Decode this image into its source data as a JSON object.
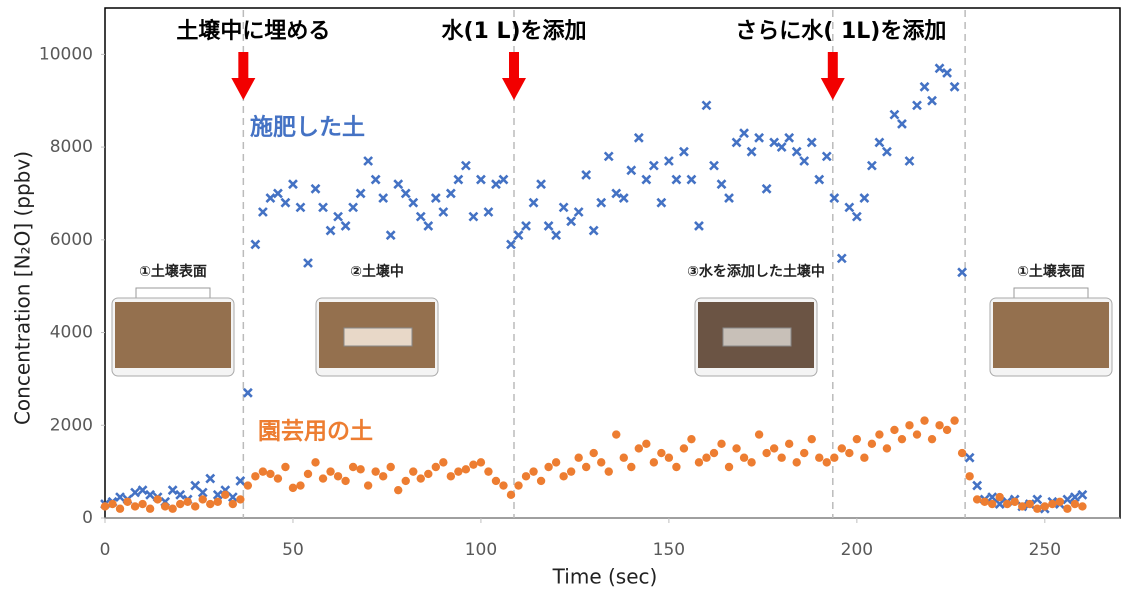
{
  "chart_data": {
    "type": "scatter",
    "xlabel": "Time (sec)",
    "ylabel": "Concentration [N₂O] (ppbv)",
    "xlim": [
      0,
      270
    ],
    "ylim": [
      0,
      11000
    ],
    "xticks": [
      0,
      50,
      100,
      150,
      200,
      250
    ],
    "yticks": [
      0,
      2000,
      4000,
      6000,
      8000,
      10000
    ],
    "x": [
      0,
      2,
      4,
      6,
      8,
      10,
      12,
      14,
      16,
      18,
      20,
      22,
      24,
      26,
      28,
      30,
      32,
      34,
      36,
      38,
      40,
      42,
      44,
      46,
      48,
      50,
      52,
      54,
      56,
      58,
      60,
      62,
      64,
      66,
      68,
      70,
      72,
      74,
      76,
      78,
      80,
      82,
      84,
      86,
      88,
      90,
      92,
      94,
      96,
      98,
      100,
      102,
      104,
      106,
      108,
      110,
      112,
      114,
      116,
      118,
      120,
      122,
      124,
      126,
      128,
      130,
      132,
      134,
      136,
      138,
      140,
      142,
      144,
      146,
      148,
      150,
      152,
      154,
      156,
      158,
      160,
      162,
      164,
      166,
      168,
      170,
      172,
      174,
      176,
      178,
      180,
      182,
      184,
      186,
      188,
      190,
      192,
      194,
      196,
      198,
      200,
      202,
      204,
      206,
      208,
      210,
      212,
      214,
      216,
      218,
      220,
      222,
      224,
      226,
      228,
      230,
      232,
      234,
      236,
      238,
      240,
      242,
      244,
      246,
      248,
      250,
      252,
      254,
      256,
      258,
      260
    ],
    "series": [
      {
        "name": "施肥した土",
        "color": "#4472c4",
        "marker": "x",
        "values": [
          300,
          350,
          450,
          400,
          550,
          600,
          500,
          450,
          350,
          600,
          500,
          400,
          700,
          550,
          850,
          500,
          600,
          450,
          800,
          2700,
          5900,
          6600,
          6900,
          7000,
          6800,
          7200,
          6700,
          5500,
          7100,
          6700,
          6200,
          6500,
          6300,
          6700,
          7000,
          7700,
          7300,
          6900,
          6100,
          7200,
          7000,
          6800,
          6500,
          6300,
          6900,
          6600,
          7000,
          7300,
          7600,
          6500,
          7300,
          6600,
          7200,
          7300,
          5900,
          6100,
          6300,
          6800,
          7200,
          6300,
          6100,
          6700,
          6400,
          6600,
          7400,
          6200,
          6800,
          7800,
          7000,
          6900,
          7500,
          8200,
          7300,
          7600,
          6800,
          7700,
          7300,
          7900,
          7300,
          6300,
          8900,
          7600,
          7200,
          6900,
          8100,
          8300,
          7900,
          8200,
          7100,
          8100,
          8000,
          8200,
          7900,
          7700,
          8100,
          7300,
          7800,
          6900,
          5600,
          6700,
          6500,
          6900,
          7600,
          8100,
          7900,
          8700,
          8500,
          7700,
          8900,
          9300,
          9000,
          9700,
          9600,
          9300,
          5300,
          1300,
          700,
          400,
          450,
          300,
          350,
          400,
          250,
          300,
          400,
          200,
          350,
          300,
          400,
          450,
          500
        ]
      },
      {
        "name": "園芸用の土",
        "color": "#ed7d31",
        "marker": "o",
        "values": [
          250,
          300,
          200,
          350,
          250,
          300,
          200,
          400,
          250,
          200,
          300,
          350,
          250,
          400,
          300,
          350,
          500,
          300,
          400,
          700,
          900,
          1000,
          950,
          850,
          1100,
          650,
          700,
          950,
          1200,
          850,
          1000,
          900,
          800,
          1100,
          1050,
          700,
          1000,
          900,
          1100,
          600,
          800,
          1000,
          850,
          950,
          1100,
          1200,
          900,
          1000,
          1050,
          1150,
          1200,
          1000,
          800,
          700,
          500,
          700,
          900,
          1000,
          800,
          1100,
          1200,
          900,
          1000,
          1300,
          1100,
          1400,
          1200,
          1000,
          1800,
          1300,
          1100,
          1500,
          1600,
          1200,
          1400,
          1300,
          1100,
          1500,
          1700,
          1200,
          1300,
          1400,
          1600,
          1100,
          1500,
          1300,
          1200,
          1800,
          1400,
          1500,
          1300,
          1600,
          1200,
          1400,
          1700,
          1300,
          1200,
          1300,
          1500,
          1400,
          1700,
          1300,
          1600,
          1800,
          1500,
          1900,
          1700,
          2000,
          1800,
          2100,
          1700,
          2000,
          1900,
          2100,
          1400,
          900,
          400,
          350,
          300,
          450,
          300,
          350,
          250,
          300,
          200,
          250,
          300,
          350,
          200,
          300,
          250
        ]
      }
    ],
    "vlines": [
      36.8,
      108.8,
      193.6,
      228.8
    ],
    "annotations": [
      "土壌中に埋める",
      "水(1 L)を添加",
      "さらに水( 1L)を添加"
    ],
    "illustrations": [
      "①土壌表面",
      "②土壌中",
      "③水を添加した土壌中",
      "①土壌表面"
    ]
  }
}
